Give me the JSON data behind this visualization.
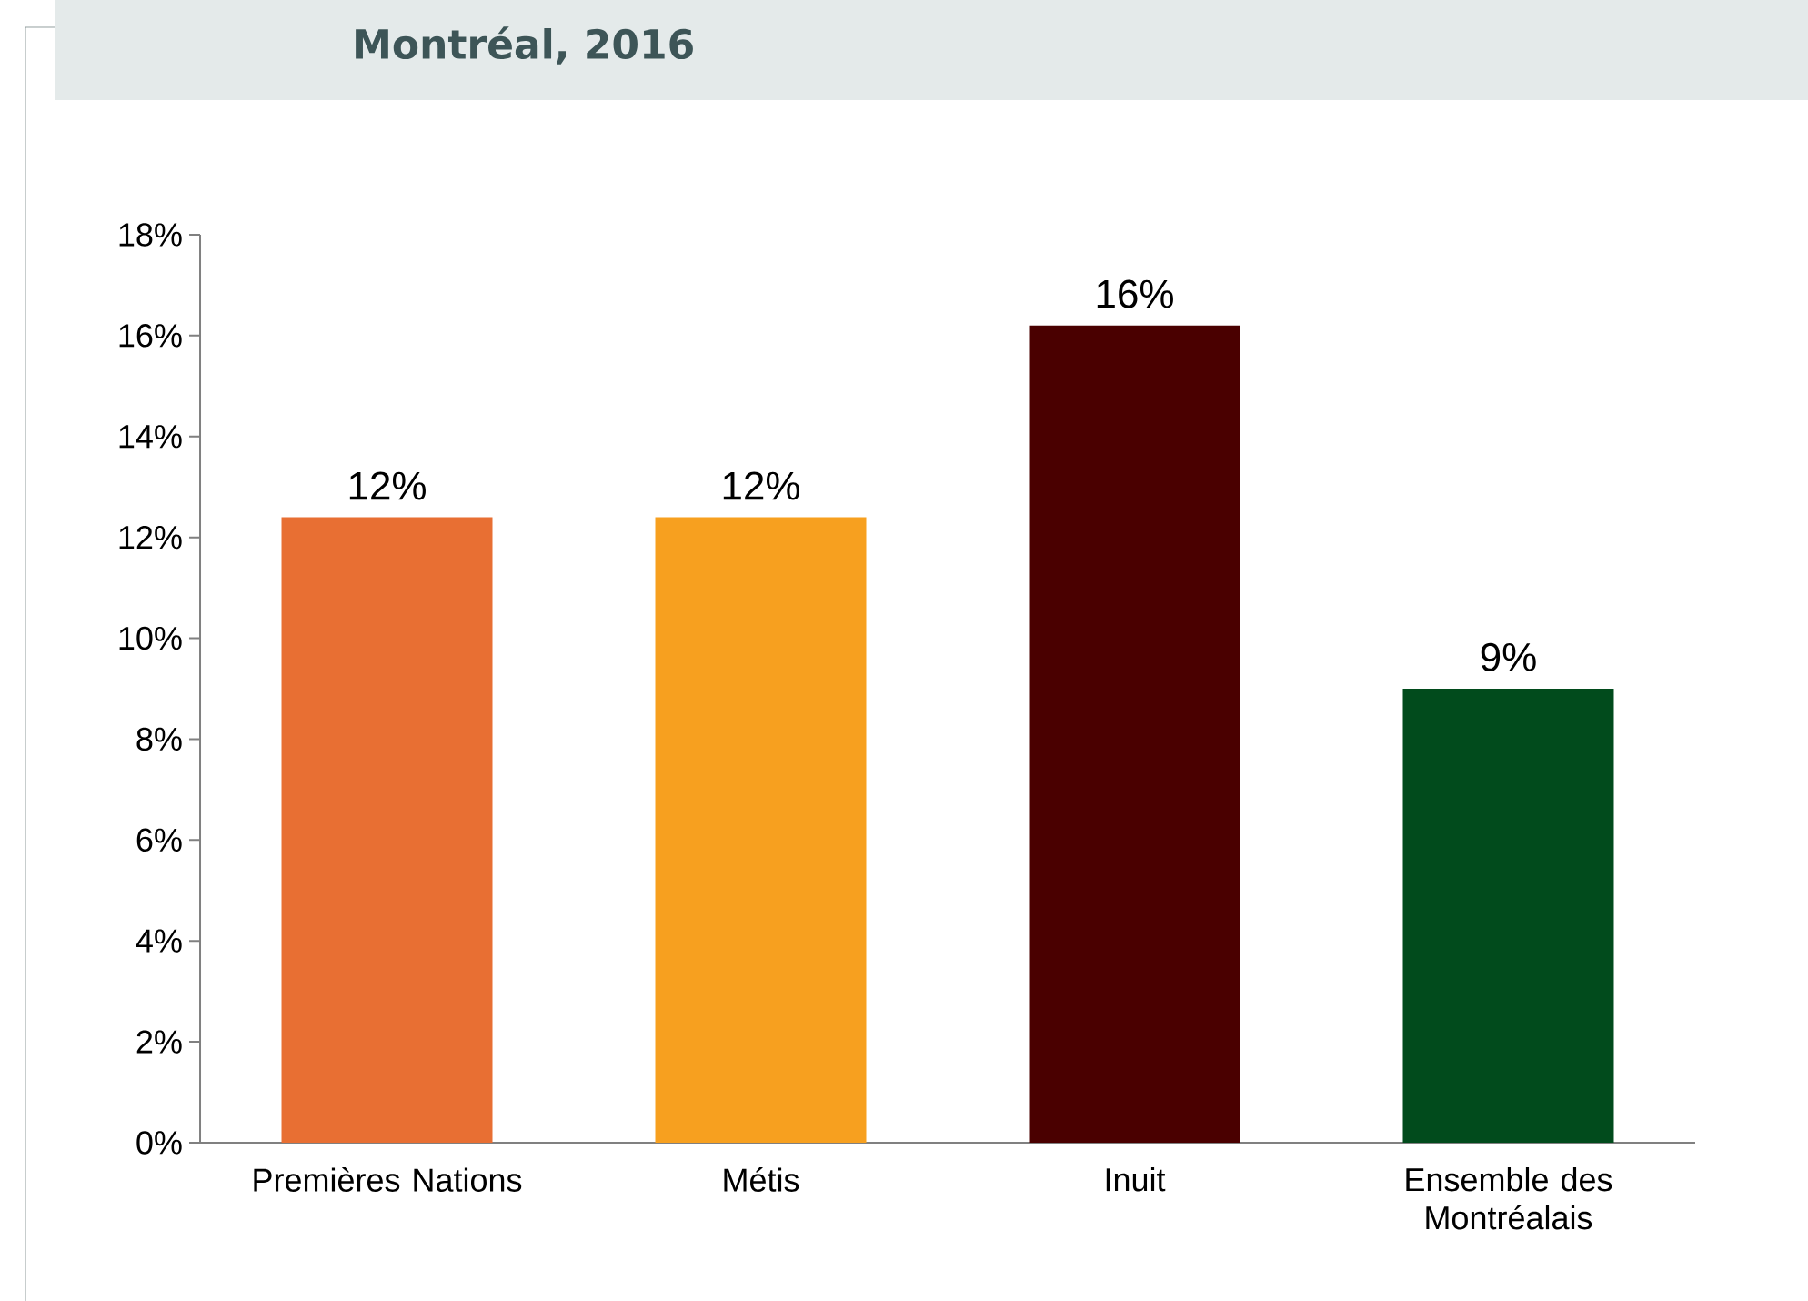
{
  "chart_data": {
    "type": "bar",
    "title": "Montréal, 2016",
    "categories": [
      "Premières Nations",
      "Métis",
      "Inuit",
      "Ensemble des Montréalais"
    ],
    "values": [
      12.4,
      12.4,
      16.2,
      9.0
    ],
    "colors": [
      "#e86f33",
      "#f7a01f",
      "#4a0000",
      "#014b1c"
    ],
    "value_labels": [
      "12%",
      "12%",
      "16%",
      "9%"
    ],
    "ylim": [
      0,
      18
    ],
    "yticks": [
      {
        "value": 0,
        "label": "0%"
      },
      {
        "value": 2,
        "label": "2%"
      },
      {
        "value": 4,
        "label": "4%"
      },
      {
        "value": 6,
        "label": "6%"
      },
      {
        "value": 8,
        "label": "8%"
      },
      {
        "value": 10,
        "label": "10%"
      },
      {
        "value": 12,
        "label": "12%"
      },
      {
        "value": 14,
        "label": "14%"
      },
      {
        "value": 16,
        "label": "16%"
      },
      {
        "value": 18,
        "label": "18%"
      }
    ],
    "grid": false
  }
}
